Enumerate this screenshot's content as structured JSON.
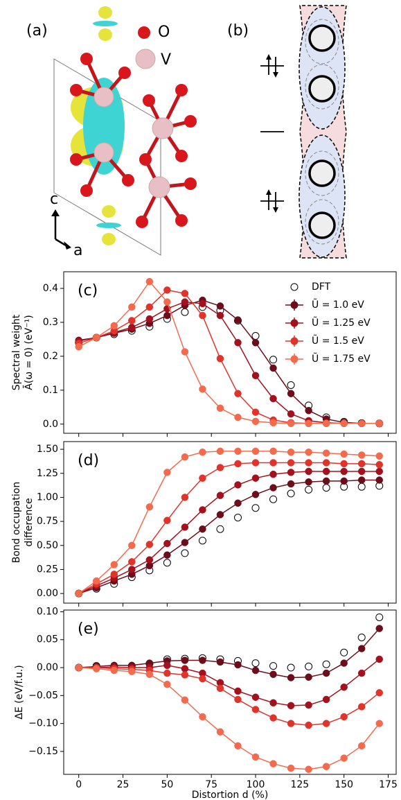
{
  "figure": {
    "panel_a": {
      "label": "(a)",
      "atoms": [
        "O",
        "V"
      ],
      "axes": [
        "c",
        "a"
      ]
    },
    "panel_b": {
      "label": "(b)"
    }
  },
  "chart_data": [
    {
      "type": "line",
      "panel": "(c)",
      "ylabel": [
        "Spectral weight",
        "Ā(ω = 0) (eV⁻¹)"
      ],
      "x": [
        0,
        10,
        20,
        30,
        40,
        50,
        60,
        70,
        80,
        90,
        100,
        110,
        120,
        130,
        140,
        150,
        160,
        170
      ],
      "xlim": [
        -8.5,
        179.5
      ],
      "xticks": [
        0,
        25,
        50,
        75,
        100,
        125,
        150,
        175
      ],
      "ylim": [
        -0.027,
        0.449
      ],
      "yticks": [
        {
          "value": 0,
          "label": "0.0"
        },
        0.1,
        0.2,
        0.3,
        0.4
      ],
      "legend": "upper right",
      "series": [
        {
          "name": "DFT",
          "color": "#000000",
          "fill": "none",
          "line": false,
          "values": [
            0.24,
            0.255,
            0.265,
            0.275,
            0.287,
            0.31,
            0.33,
            0.345,
            0.335,
            0.305,
            0.26,
            0.19,
            0.115,
            0.055,
            0.02,
            0.007,
            0.003,
            0.002
          ]
        },
        {
          "name": "Ũ = 1.0 eV",
          "color": "#6b0d1a",
          "line": true,
          "values": [
            0.247,
            0.255,
            0.268,
            0.28,
            0.297,
            0.32,
            0.35,
            0.365,
            0.348,
            0.307,
            0.24,
            0.165,
            0.09,
            0.04,
            0.015,
            0.005,
            0.002,
            0.002
          ]
        },
        {
          "name": "Ũ = 1.25 eV",
          "color": "#a3101e",
          "line": true,
          "values": [
            0.245,
            0.255,
            0.27,
            0.285,
            0.31,
            0.34,
            0.36,
            0.355,
            0.32,
            0.24,
            0.143,
            0.075,
            0.03,
            0.01,
            0.004,
            0.002,
            0.002,
            0.002
          ]
        },
        {
          "name": "Ũ = 1.5 eV",
          "color": "#e0332a",
          "line": true,
          "values": [
            0.238,
            0.255,
            0.275,
            0.305,
            0.345,
            0.395,
            0.385,
            0.32,
            0.193,
            0.09,
            0.035,
            0.012,
            0.004,
            0.002,
            0.002,
            0.002,
            0.002,
            0.002
          ]
        },
        {
          "name": "Ũ = 1.75 eV",
          "color": "#f46a4c",
          "line": true,
          "values": [
            0.228,
            0.255,
            0.29,
            0.345,
            0.42,
            0.36,
            0.213,
            0.103,
            0.047,
            0.02,
            0.008,
            0.004,
            0.002,
            0.002,
            0.002,
            0.002,
            0.002,
            0.002
          ]
        }
      ]
    },
    {
      "type": "line",
      "panel": "(d)",
      "ylabel": [
        "Bond occupation",
        "difference"
      ],
      "x": [
        0,
        10,
        20,
        30,
        40,
        50,
        60,
        70,
        80,
        90,
        100,
        110,
        120,
        130,
        140,
        150,
        160,
        170
      ],
      "xlim": [
        -8.5,
        179.5
      ],
      "xticks": [
        0,
        25,
        50,
        75,
        100,
        125,
        150,
        175
      ],
      "ylim": [
        -0.1,
        1.58
      ],
      "yticks": [
        {
          "value": 0,
          "label": "0.00"
        },
        0.25,
        {
          "value": 0.5,
          "label": "0.50"
        },
        0.75,
        {
          "value": 1,
          "label": "1.00"
        },
        1.25,
        {
          "value": 1.5,
          "label": "1.50"
        }
      ],
      "series": [
        {
          "color": "#000000",
          "fill": "none",
          "line": false,
          "values": [
            0,
            0.05,
            0.1,
            0.17,
            0.24,
            0.32,
            0.42,
            0.55,
            0.67,
            0.79,
            0.89,
            0.98,
            1.04,
            1.08,
            1.1,
            1.11,
            1.11,
            1.12
          ]
        },
        {
          "color": "#6b0d1a",
          "line": true,
          "values": [
            0,
            0.06,
            0.13,
            0.2,
            0.29,
            0.4,
            0.53,
            0.67,
            0.82,
            0.94,
            1.03,
            1.1,
            1.14,
            1.16,
            1.17,
            1.17,
            1.18,
            1.18
          ]
        },
        {
          "color": "#a3101e",
          "line": true,
          "values": [
            0,
            0.08,
            0.16,
            0.25,
            0.35,
            0.52,
            0.69,
            0.87,
            1.02,
            1.13,
            1.2,
            1.24,
            1.26,
            1.27,
            1.27,
            1.27,
            1.27,
            1.27
          ]
        },
        {
          "color": "#e0332a",
          "line": true,
          "values": [
            0,
            0.1,
            0.2,
            0.33,
            0.51,
            0.76,
            1.0,
            1.2,
            1.31,
            1.35,
            1.36,
            1.36,
            1.36,
            1.36,
            1.36,
            1.35,
            1.35,
            1.34
          ]
        },
        {
          "color": "#f46a4c",
          "line": true,
          "values": [
            0,
            0.13,
            0.3,
            0.5,
            0.9,
            1.26,
            1.42,
            1.47,
            1.48,
            1.48,
            1.48,
            1.48,
            1.47,
            1.47,
            1.46,
            1.45,
            1.44,
            1.43
          ]
        }
      ]
    },
    {
      "type": "line",
      "panel": "(e)",
      "ylabel": [
        "ΔE (eV/f.u.)"
      ],
      "xlabel": "Distortion d (%)",
      "x": [
        0,
        10,
        20,
        30,
        40,
        50,
        60,
        70,
        80,
        90,
        100,
        110,
        120,
        130,
        140,
        150,
        160,
        170
      ],
      "xlim": [
        -8.5,
        179.5
      ],
      "xticks": [
        0,
        25,
        50,
        75,
        100,
        125,
        150,
        175
      ],
      "ylim": [
        -0.191,
        0.103
      ],
      "yticks": [
        {
          "value": -0.15,
          "label": "−0.15"
        },
        {
          "value": -0.1,
          "label": "−0.10"
        },
        {
          "value": -0.05,
          "label": "−0.05"
        },
        {
          "value": 0,
          "label": "0.00"
        },
        0.05,
        {
          "value": 0.1,
          "label": "0.10"
        }
      ],
      "series": [
        {
          "color": "#000000",
          "fill": "none",
          "line": false,
          "values": [
            0,
            0.003,
            0.002,
            0.003,
            0.007,
            0.015,
            0.016,
            0.017,
            0.015,
            0.012,
            0.008,
            0.003,
            0.0,
            0.002,
            0.006,
            0.027,
            0.054,
            0.09
          ]
        },
        {
          "color": "#6b0d1a",
          "line": true,
          "values": [
            0,
            0.002,
            0.004,
            0.004,
            0.008,
            0.012,
            0.013,
            0.013,
            0.01,
            0.005,
            -0.005,
            -0.012,
            -0.018,
            -0.017,
            -0.01,
            0.008,
            0.034,
            0.07
          ]
        },
        {
          "color": "#a3101e",
          "line": true,
          "values": [
            0,
            0,
            0.001,
            0,
            0,
            0.004,
            -0.002,
            -0.01,
            -0.027,
            -0.042,
            -0.053,
            -0.063,
            -0.068,
            -0.067,
            -0.057,
            -0.035,
            -0.01,
            0.015
          ]
        },
        {
          "color": "#e0332a",
          "line": true,
          "values": [
            0,
            0,
            -0.002,
            -0.003,
            -0.005,
            -0.01,
            -0.013,
            -0.02,
            -0.037,
            -0.057,
            -0.075,
            -0.09,
            -0.1,
            -0.103,
            -0.1,
            -0.088,
            -0.07,
            -0.045
          ]
        },
        {
          "color": "#f46a4c",
          "line": true,
          "values": [
            0,
            -0.002,
            -0.005,
            -0.007,
            -0.012,
            -0.03,
            -0.058,
            -0.088,
            -0.115,
            -0.14,
            -0.16,
            -0.172,
            -0.18,
            -0.182,
            -0.177,
            -0.162,
            -0.14,
            -0.1
          ]
        }
      ]
    }
  ]
}
